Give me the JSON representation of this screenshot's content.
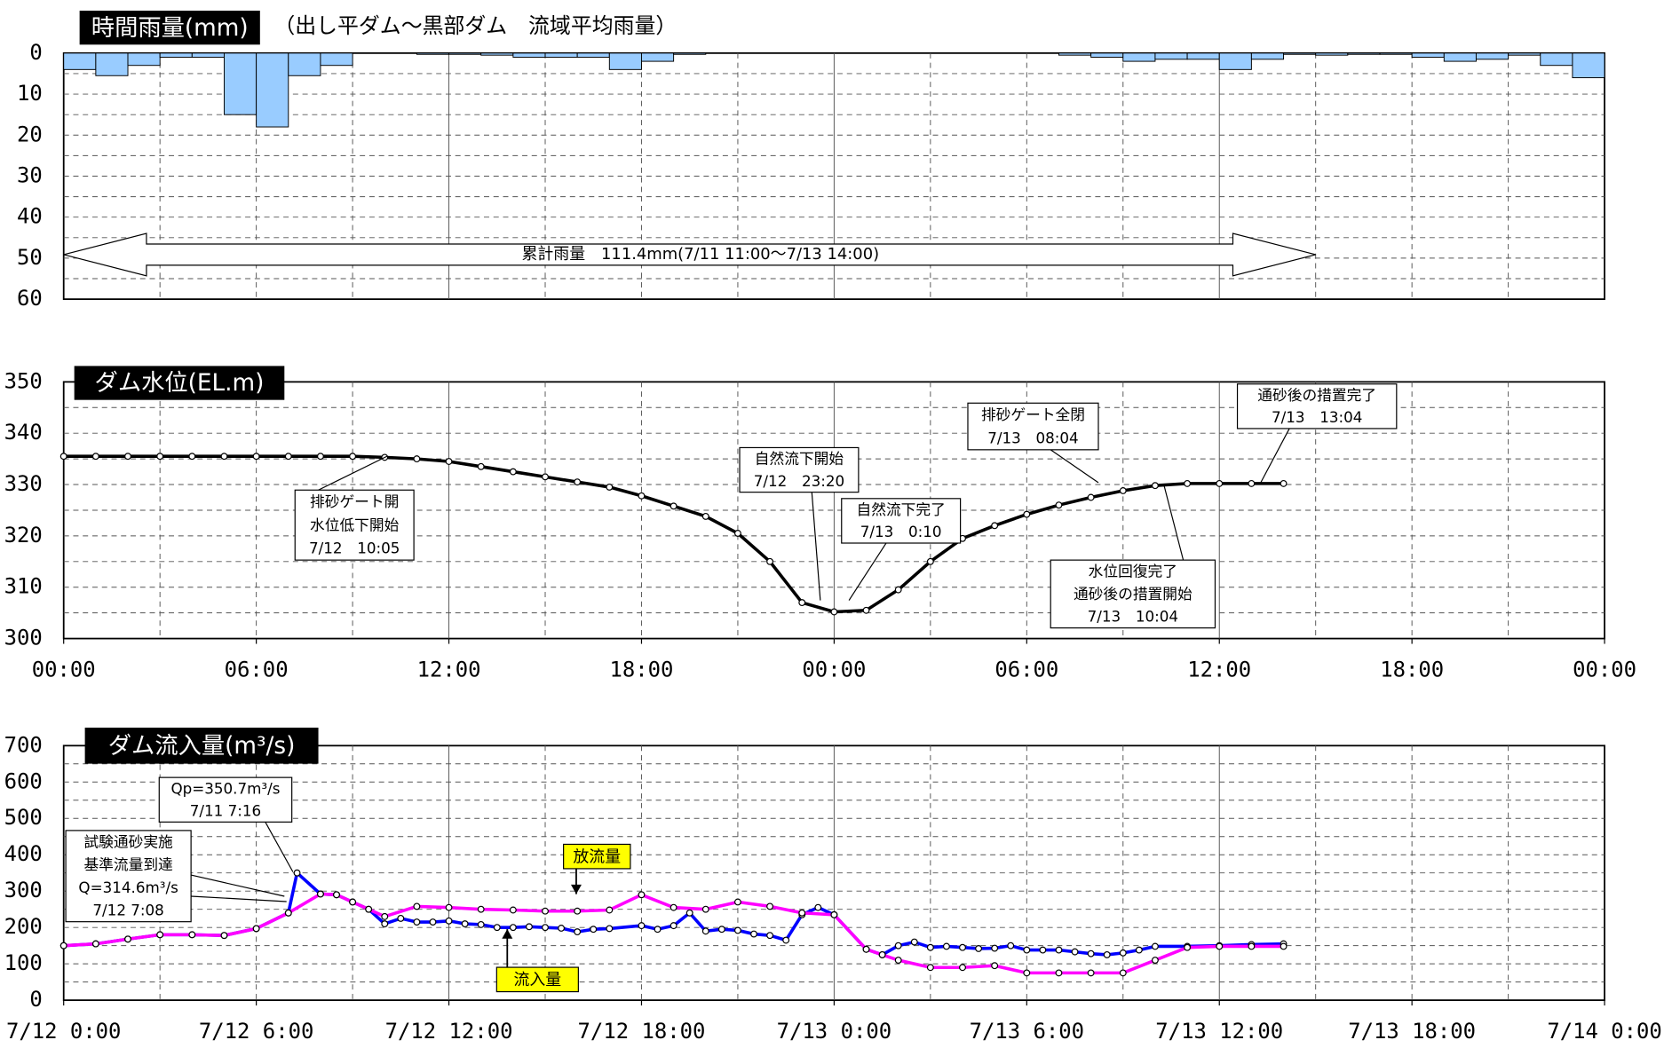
{
  "chart_data": [
    {
      "type": "bar",
      "title": "時間雨量(mm)",
      "subtitle": "（出し平ダム～黒部ダム　流域平均雨量）",
      "annotation": "累計雨量　111.4mm(7/11 11:00～7/13 14:00)",
      "x": [
        0,
        1,
        2,
        3,
        4,
        5,
        6,
        7,
        8,
        9,
        10,
        11,
        12,
        13,
        14,
        15,
        16,
        17,
        18,
        19,
        20,
        21,
        22,
        23,
        24,
        25,
        26,
        27,
        28,
        29,
        30,
        31,
        32,
        33,
        34,
        35,
        36,
        37,
        38,
        39,
        40,
        41,
        42,
        43,
        44,
        45,
        46,
        47
      ],
      "values": [
        4,
        5.5,
        3,
        1,
        1,
        15,
        18,
        5.5,
        3,
        0,
        0,
        0.3,
        0.3,
        0.5,
        1,
        1,
        1,
        4,
        2,
        0.3,
        0,
        0,
        0,
        0,
        0,
        0,
        0,
        0,
        0,
        0,
        0,
        0.5,
        1,
        2,
        1.5,
        1.5,
        4,
        1.5,
        0.3,
        0.5,
        0.3,
        0.3,
        1,
        2,
        1.5,
        0.5,
        3,
        6
      ],
      "color": "#99ccff",
      "xlim": [
        0,
        48
      ],
      "ylim": [
        0,
        60
      ],
      "y_inverted": true,
      "yticks": [
        0,
        10,
        20,
        30,
        40,
        50,
        60
      ],
      "grid": true
    },
    {
      "type": "line",
      "title": "ダム水位(EL.m)",
      "x": [
        0,
        1,
        2,
        3,
        4,
        5,
        6,
        7,
        8,
        9,
        10,
        11,
        12,
        13,
        14,
        15,
        16,
        17,
        18,
        19,
        20,
        21,
        22,
        23,
        24,
        25,
        26,
        27,
        28,
        29,
        30,
        31,
        32,
        33,
        34,
        35,
        36,
        37,
        38
      ],
      "values": [
        335.5,
        335.5,
        335.5,
        335.5,
        335.5,
        335.5,
        335.5,
        335.5,
        335.5,
        335.5,
        335.3,
        335,
        334.5,
        333.5,
        332.5,
        331.5,
        330.5,
        329.5,
        327.8,
        325.8,
        323.8,
        320.5,
        315,
        307,
        305.2,
        305.5,
        309.5,
        315,
        319.5,
        322,
        324.2,
        326,
        327.5,
        328.8,
        329.8,
        330.2,
        330.2,
        330.2,
        330.2
      ],
      "color": "#000000",
      "xlim": [
        0,
        48
      ],
      "ylim": [
        300,
        350
      ],
      "yticks": [
        300,
        310,
        320,
        330,
        340,
        350
      ],
      "xticks": [
        {
          "value": 0,
          "label": "00:00"
        },
        {
          "value": 6,
          "label": "06:00"
        },
        {
          "value": 12,
          "label": "12:00"
        },
        {
          "value": 18,
          "label": "18:00"
        },
        {
          "value": 24,
          "label": "00:00"
        },
        {
          "value": 30,
          "label": "06:00"
        },
        {
          "value": 36,
          "label": "12:00"
        },
        {
          "value": 42,
          "label": "18:00"
        },
        {
          "value": 48,
          "label": "00:00"
        }
      ],
      "grid": true,
      "annotations": [
        [
          "排砂ゲート開",
          "水位低下開始",
          "7/12　10:05"
        ],
        [
          "自然流下開始",
          "7/12　23:20"
        ],
        [
          "自然流下完了",
          "7/13　0:10"
        ],
        [
          "排砂ゲート全閉",
          "7/13　08:04"
        ],
        [
          "通砂後の措置完了",
          "7/13　13:04"
        ],
        [
          "水位回復完了",
          "通砂後の措置開始",
          "7/13　10:04"
        ]
      ]
    },
    {
      "type": "line",
      "title": "ダム流入量(m³/s)",
      "series": [
        {
          "name": "流入量",
          "color": "#0000ff",
          "x": [
            0,
            1,
            2,
            3,
            4,
            5,
            6,
            7,
            7.27,
            8,
            8.5,
            9,
            9.5,
            10,
            10.5,
            11,
            11.5,
            12,
            12.5,
            13,
            13.5,
            14,
            14.5,
            15,
            15.5,
            16,
            16.5,
            17,
            18,
            18.5,
            19,
            19.5,
            20,
            20.5,
            21,
            21.5,
            22,
            22.5,
            23,
            23.5,
            24,
            25,
            25.5,
            26,
            26.5,
            27,
            27.5,
            28,
            28.5,
            29,
            29.5,
            30,
            30.5,
            31,
            31.5,
            32,
            32.5,
            33,
            33.5,
            34,
            35,
            36,
            37,
            38
          ],
          "values": [
            150,
            155,
            168,
            180,
            180,
            178,
            197,
            240,
            350,
            292,
            290,
            270,
            250,
            210,
            225,
            215,
            215,
            218,
            210,
            208,
            200,
            200,
            202,
            200,
            198,
            188,
            195,
            197,
            205,
            195,
            205,
            240,
            190,
            195,
            192,
            182,
            178,
            165,
            235,
            255,
            235,
            140,
            125,
            150,
            160,
            145,
            148,
            145,
            142,
            143,
            150,
            138,
            138,
            138,
            133,
            128,
            125,
            130,
            138,
            148,
            148,
            150,
            153,
            155
          ]
        },
        {
          "name": "放流量",
          "color": "#ff00ff",
          "x": [
            0,
            1,
            2,
            3,
            4,
            5,
            6,
            7,
            8,
            8.5,
            9,
            9.5,
            10,
            11,
            12,
            13,
            14,
            15,
            16,
            17,
            18,
            19,
            20,
            21,
            22,
            23,
            24,
            25,
            25.5,
            26,
            27,
            28,
            29,
            30,
            31,
            32,
            33,
            34,
            35,
            36,
            37,
            38
          ],
          "values": [
            150,
            155,
            168,
            180,
            180,
            178,
            197,
            240,
            292,
            290,
            270,
            250,
            230,
            258,
            255,
            250,
            248,
            245,
            245,
            248,
            290,
            255,
            250,
            270,
            258,
            240,
            235,
            140,
            125,
            110,
            90,
            90,
            95,
            75,
            75,
            75,
            75,
            110,
            145,
            148,
            148,
            148
          ]
        }
      ],
      "xlim": [
        0,
        48
      ],
      "ylim": [
        0,
        700
      ],
      "yticks": [
        0,
        100,
        200,
        300,
        400,
        500,
        600,
        700
      ],
      "xticks": [
        {
          "value": 0,
          "label": "7/12 0:00"
        },
        {
          "value": 6,
          "label": "7/12 6:00"
        },
        {
          "value": 12,
          "label": "7/12 12:00"
        },
        {
          "value": 18,
          "label": "7/12 18:00"
        },
        {
          "value": 24,
          "label": "7/13 0:00"
        },
        {
          "value": 30,
          "label": "7/13 6:00"
        },
        {
          "value": 36,
          "label": "7/13 12:00"
        },
        {
          "value": 42,
          "label": "7/13 18:00"
        },
        {
          "value": 48,
          "label": "7/14 0:00"
        }
      ],
      "grid": true,
      "annotations": [
        [
          "Qp=350.7m³/s",
          "7/11 7:16"
        ],
        [
          "試験通砂実施",
          "基準流量到達",
          "Q=314.6m³/s",
          "7/12 7:08"
        ]
      ]
    }
  ]
}
